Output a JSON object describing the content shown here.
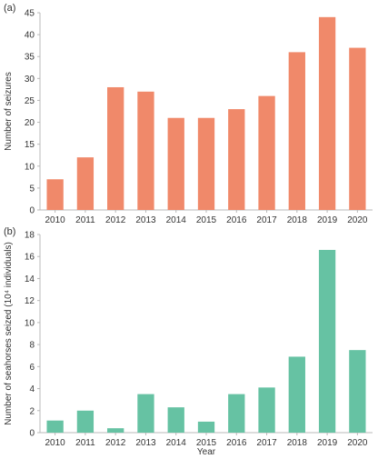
{
  "chart_data": [
    {
      "type": "bar",
      "panel_label": "(a)",
      "categories": [
        "2010",
        "2011",
        "2012",
        "2013",
        "2014",
        "2015",
        "2016",
        "2017",
        "2018",
        "2019",
        "2020"
      ],
      "values": [
        7,
        12,
        28,
        27,
        21,
        21,
        23,
        26,
        36,
        44,
        37
      ],
      "ylabel": "Number of seizures",
      "ylim": [
        0,
        45
      ],
      "yticks": [
        0,
        5,
        10,
        15,
        20,
        25,
        30,
        35,
        40,
        45
      ],
      "color": "#f0896a",
      "grid": false
    },
    {
      "type": "bar",
      "panel_label": "(b)",
      "categories": [
        "2010",
        "2011",
        "2012",
        "2013",
        "2014",
        "2015",
        "2016",
        "2017",
        "2018",
        "2019",
        "2020"
      ],
      "values": [
        1.1,
        2.0,
        0.4,
        3.5,
        2.3,
        1.0,
        3.5,
        4.1,
        6.9,
        16.6,
        7.5
      ],
      "ylabel": "Number of seahorses seized (10⁴ individuals)",
      "ylim": [
        0,
        18
      ],
      "yticks": [
        0,
        2,
        4,
        6,
        8,
        10,
        12,
        14,
        16,
        18
      ],
      "xlabel": "Year",
      "color": "#66c2a3",
      "grid": false
    }
  ]
}
